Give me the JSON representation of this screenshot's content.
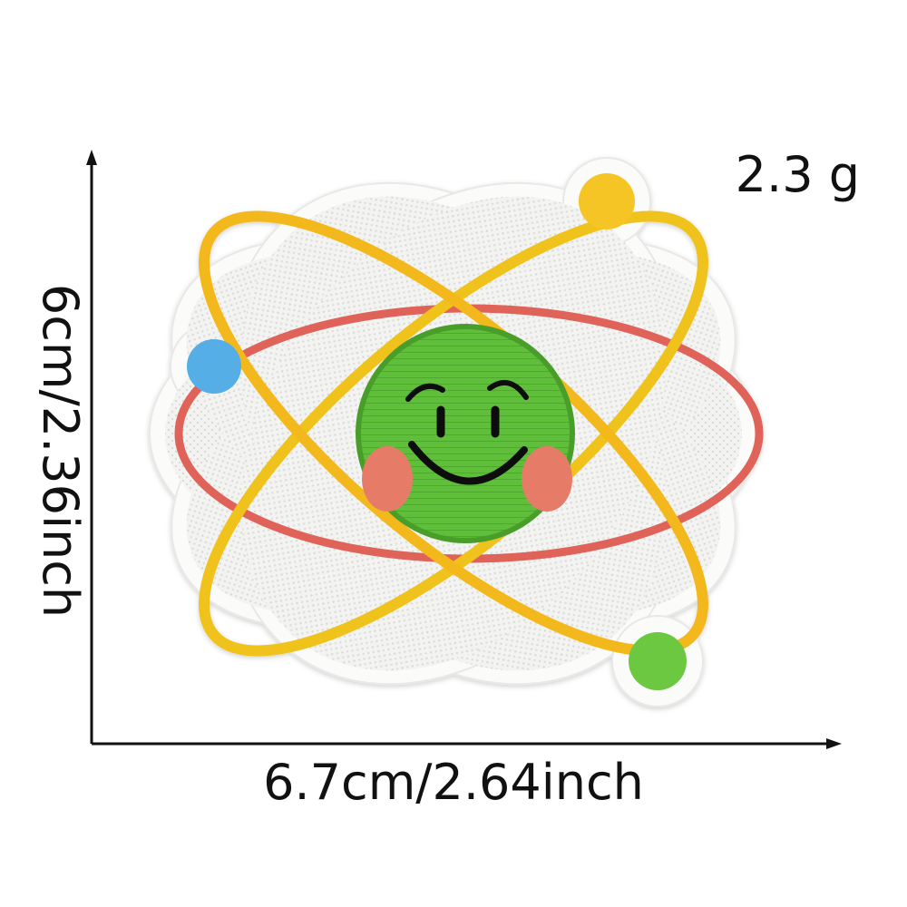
{
  "weight_label": "2.3 g",
  "height_label": "6cm/2.36inch",
  "width_label": "6.7cm/2.64inch",
  "colors": {
    "patch_base": "#f4f4f2",
    "patch_border": "#fbfbfa",
    "orbit_yellow": "#f0c21d",
    "orbit_red": "#e0645a",
    "face_green": "#5fbf3a",
    "electron_blue": "#55aee6",
    "electron_yellow": "#f5c526",
    "electron_green": "#6cc83f",
    "cheek": "#e67c67",
    "arrow": "#111111"
  },
  "icons": [
    "atom-patch",
    "smiley-face",
    "dimension-arrow"
  ]
}
